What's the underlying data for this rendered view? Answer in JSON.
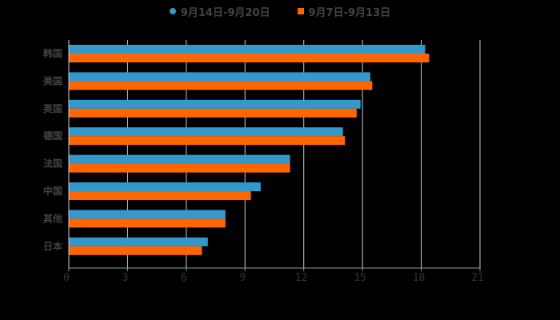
{
  "chart_data": {
    "type": "bar",
    "orientation": "horizontal",
    "title": "",
    "xlabel": "",
    "ylabel": "",
    "categories": [
      "韩国",
      "美国",
      "英国",
      "德国",
      "法国",
      "中国",
      "其他",
      "日本"
    ],
    "series": [
      {
        "name": "9月14日-9月20日",
        "color": "#3399CC",
        "values": [
          18.2,
          15.4,
          14.9,
          14.0,
          11.3,
          9.8,
          8.0,
          7.1
        ]
      },
      {
        "name": "9月7日-9月13日",
        "color": "#FF6600",
        "values": [
          18.4,
          15.5,
          14.7,
          14.1,
          11.3,
          9.3,
          8.0,
          6.8
        ]
      }
    ],
    "xlim": [
      0,
      21
    ],
    "xticks": [
      0,
      3,
      6,
      9,
      12,
      15,
      18,
      21
    ],
    "grid": true,
    "legend_position": "top"
  },
  "legend": [
    {
      "label": "9月14日-9月20日",
      "color": "#3399CC",
      "marker": "circle"
    },
    {
      "label": "9月7日-9月13日",
      "color": "#FF6600",
      "marker": "square"
    }
  ],
  "colors": {
    "background": "#000000",
    "grid": "#CCCCCC",
    "text": "#444444"
  }
}
